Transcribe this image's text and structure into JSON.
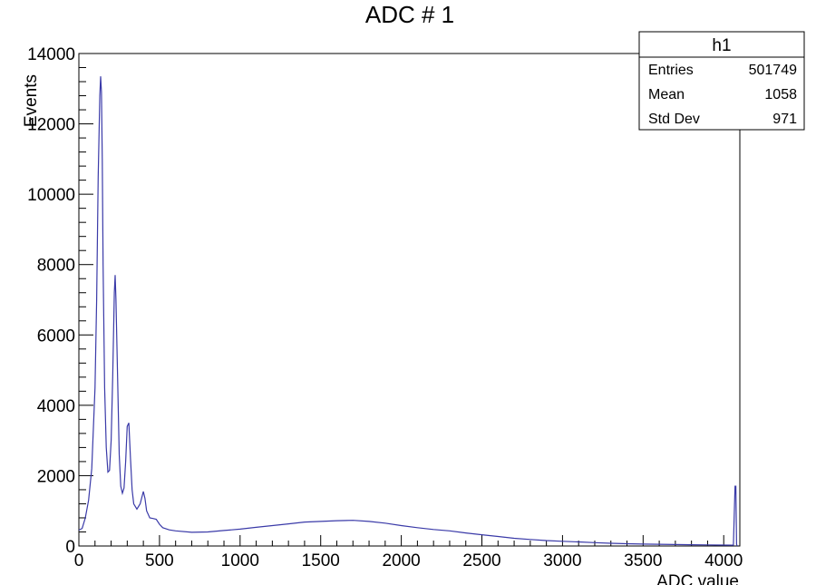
{
  "chart_data": {
    "type": "line",
    "title": "ADC # 1",
    "xlabel": "ADC value",
    "ylabel": "Events",
    "xlim": [
      0,
      4100
    ],
    "ylim": [
      0,
      14000
    ],
    "x_ticks": [
      0,
      500,
      1000,
      1500,
      2000,
      2500,
      3000,
      3500,
      4000
    ],
    "y_ticks": [
      0,
      2000,
      4000,
      6000,
      8000,
      10000,
      12000,
      14000
    ],
    "grid": false,
    "legend": "none",
    "series": [
      {
        "color": "#3a3aa8",
        "x": [
          0,
          20,
          40,
          60,
          80,
          100,
          110,
          120,
          130,
          135,
          140,
          145,
          150,
          160,
          170,
          180,
          190,
          200,
          210,
          220,
          225,
          230,
          240,
          250,
          260,
          270,
          280,
          290,
          300,
          310,
          320,
          330,
          340,
          360,
          380,
          400,
          410,
          420,
          440,
          460,
          480,
          500,
          520,
          560,
          600,
          700,
          800,
          900,
          1000,
          1100,
          1200,
          1300,
          1400,
          1500,
          1600,
          1700,
          1800,
          1900,
          2000,
          2100,
          2200,
          2300,
          2400,
          2500,
          2600,
          2700,
          2800,
          2900,
          3000,
          3100,
          3200,
          3300,
          3400,
          3500,
          3600,
          3700,
          3800,
          3900,
          4000,
          4060,
          4070,
          4075,
          4080,
          4085
        ],
        "values": [
          450,
          500,
          800,
          1300,
          2200,
          4500,
          7000,
          10500,
          12800,
          13350,
          12900,
          11000,
          8000,
          4500,
          2800,
          2100,
          2150,
          3000,
          4800,
          7200,
          7700,
          7000,
          4800,
          2600,
          1700,
          1500,
          1650,
          2400,
          3400,
          3500,
          2500,
          1600,
          1200,
          1050,
          1200,
          1550,
          1350,
          1000,
          800,
          780,
          760,
          620,
          520,
          460,
          430,
          390,
          400,
          440,
          480,
          530,
          580,
          630,
          680,
          700,
          720,
          730,
          700,
          650,
          580,
          520,
          470,
          430,
          370,
          320,
          270,
          220,
          185,
          155,
          135,
          115,
          95,
          78,
          65,
          55,
          48,
          40,
          35,
          30,
          25,
          22,
          1700,
          1700,
          40,
          0
        ]
      }
    ],
    "stats_box": {
      "title": "h1",
      "rows": [
        {
          "label": "Entries",
          "value": "501749"
        },
        {
          "label": "Mean",
          "value": "1058"
        },
        {
          "label": "Std Dev",
          "value": "971"
        }
      ]
    }
  }
}
